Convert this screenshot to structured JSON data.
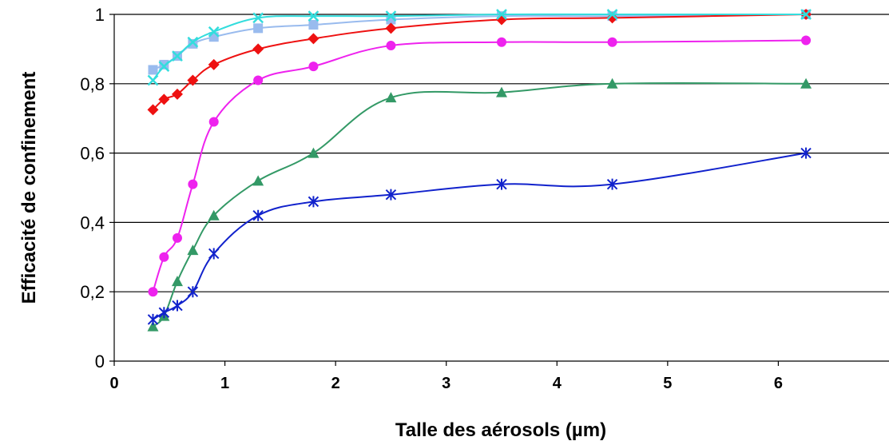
{
  "chart_data": {
    "type": "line",
    "title": "",
    "xlabel": "Talle des aérosols (µm)",
    "ylabel": "Efficacité de confinement",
    "xlim": [
      0,
      7
    ],
    "ylim": [
      0,
      1
    ],
    "x_ticks": [
      0,
      1,
      2,
      3,
      4,
      5,
      6
    ],
    "x_tick_labels": [
      "0",
      "1",
      "2",
      "3",
      "4",
      "5",
      "6"
    ],
    "y_ticks": [
      0,
      0.2,
      0.4,
      0.6,
      0.8,
      1
    ],
    "y_tick_labels": [
      "0",
      "0,2",
      "0,4",
      "0,6",
      "0,8",
      "1"
    ],
    "grid": "horizontal",
    "series": [
      {
        "color": "#99bbee",
        "marker": "square",
        "x": [
          0.35,
          0.45,
          0.57,
          0.71,
          0.9,
          1.3,
          1.8,
          2.5,
          3.5,
          4.5,
          6.25
        ],
        "y": [
          0.84,
          0.855,
          0.88,
          0.915,
          0.935,
          0.96,
          0.97,
          0.985,
          0.995,
          0.995,
          1.0
        ]
      },
      {
        "color": "#ee1111",
        "marker": "diamond",
        "x": [
          0.35,
          0.45,
          0.57,
          0.71,
          0.9,
          1.3,
          1.8,
          2.5,
          3.5,
          4.5,
          6.25
        ],
        "y": [
          0.725,
          0.755,
          0.77,
          0.81,
          0.855,
          0.9,
          0.93,
          0.96,
          0.985,
          0.99,
          1.0
        ]
      },
      {
        "color": "#ee22ee",
        "marker": "circle",
        "x": [
          0.35,
          0.45,
          0.57,
          0.71,
          0.9,
          1.3,
          1.8,
          2.5,
          3.5,
          4.5,
          6.25
        ],
        "y": [
          0.2,
          0.3,
          0.355,
          0.51,
          0.69,
          0.81,
          0.85,
          0.91,
          0.92,
          0.92,
          0.925
        ]
      },
      {
        "color": "#339966",
        "marker": "triangle",
        "x": [
          0.35,
          0.45,
          0.57,
          0.71,
          0.9,
          1.3,
          1.8,
          2.5,
          3.5,
          4.5,
          6.25
        ],
        "y": [
          0.1,
          0.13,
          0.23,
          0.32,
          0.42,
          0.52,
          0.6,
          0.76,
          0.775,
          0.8,
          0.8
        ]
      },
      {
        "color": "#1122cc",
        "marker": "asterisk",
        "x": [
          0.35,
          0.45,
          0.57,
          0.71,
          0.9,
          1.3,
          1.8,
          2.5,
          3.5,
          4.5,
          6.25
        ],
        "y": [
          0.12,
          0.14,
          0.16,
          0.2,
          0.31,
          0.42,
          0.46,
          0.48,
          0.51,
          0.51,
          0.6
        ]
      },
      {
        "color": "#33dddd",
        "marker": "x",
        "x": [
          0.35,
          0.45,
          0.57,
          0.71,
          0.9,
          1.3,
          1.8,
          2.5,
          3.5,
          4.5,
          6.25
        ],
        "y": [
          0.81,
          0.85,
          0.88,
          0.92,
          0.95,
          0.99,
          0.995,
          0.995,
          1.0,
          1.0,
          1.0
        ]
      }
    ]
  }
}
